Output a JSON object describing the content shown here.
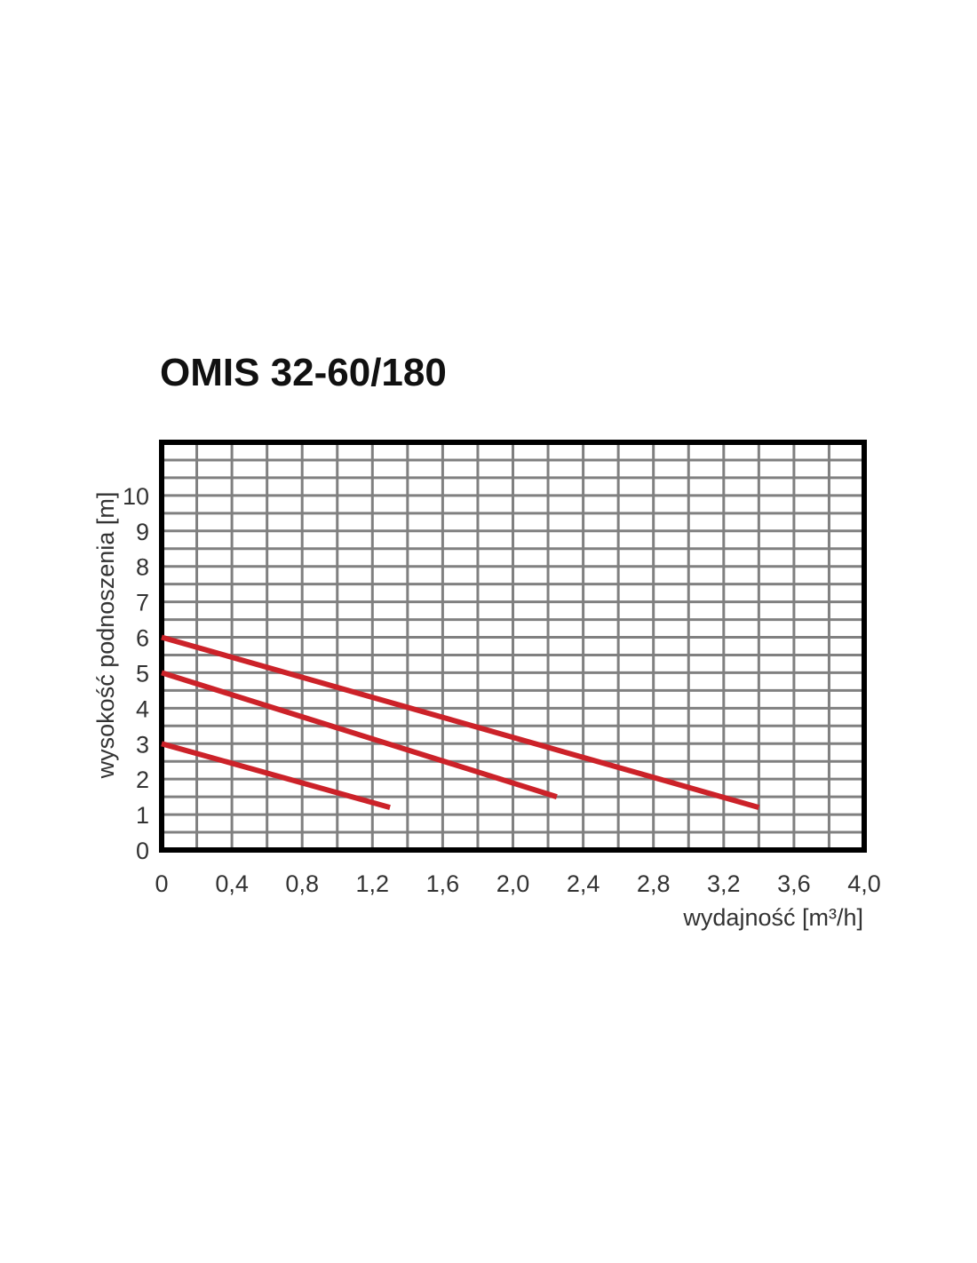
{
  "chart_data": {
    "type": "line",
    "title": "OMIS 32-60/180",
    "xlabel": "wydajność [m³/h]",
    "ylabel": "wysokość podnoszenia [m]",
    "xlim": [
      0,
      4.0
    ],
    "ylim": [
      0,
      11.5
    ],
    "x_ticks": [
      "0",
      "0,4",
      "0,8",
      "1,2",
      "1,6",
      "2,0",
      "2,4",
      "2,8",
      "3,2",
      "3,6",
      "4,0"
    ],
    "y_ticks": [
      "0",
      "1",
      "2",
      "3",
      "4",
      "5",
      "6",
      "7",
      "8",
      "9",
      "10"
    ],
    "grid": true,
    "series": [
      {
        "points": [
          [
            0,
            6.0
          ],
          [
            3.4,
            1.2
          ]
        ]
      },
      {
        "points": [
          [
            0,
            5.0
          ],
          [
            2.25,
            1.5
          ]
        ]
      },
      {
        "points": [
          [
            0,
            3.0
          ],
          [
            1.3,
            1.2
          ]
        ]
      }
    ],
    "colors": {
      "line": "#cc2229",
      "grid": "#808080",
      "frame": "#000000",
      "background": "#ffffff"
    }
  }
}
